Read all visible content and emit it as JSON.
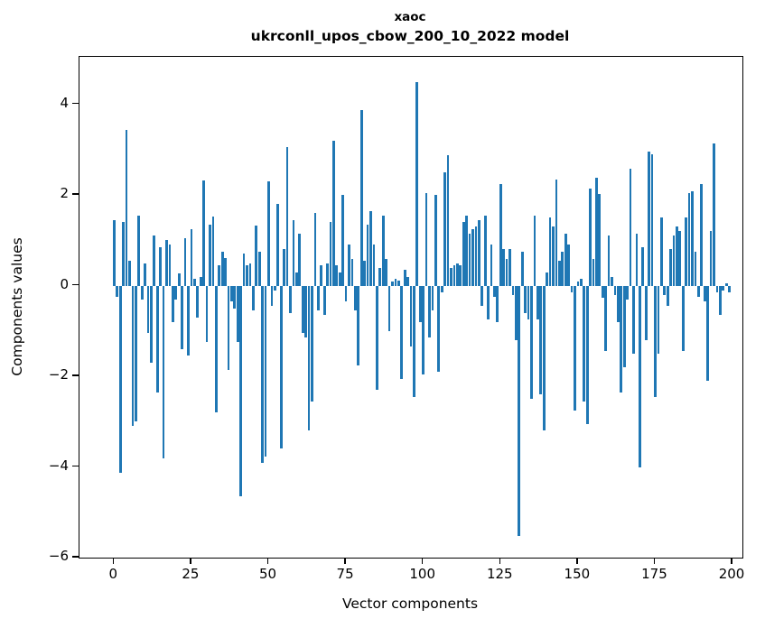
{
  "title": {
    "line1": "xaoc",
    "line2": "ukrconll_upos_cbow_200_10_2022 model"
  },
  "chart_data": {
    "type": "bar",
    "title": "xaoc\nukrconll_upos_cbow_200_10_2022 model",
    "xlabel": "Vector components",
    "ylabel": "Components values",
    "bar_color": "#1f77b4",
    "x_ticks": [
      0,
      25,
      50,
      75,
      100,
      125,
      150,
      175,
      200
    ],
    "y_ticks": [
      -6,
      -4,
      -2,
      0,
      2,
      4
    ],
    "xlim": [
      -11.2,
      203.2
    ],
    "ylim": [
      -6,
      5.05
    ],
    "grid": false,
    "legend": "none",
    "x_start": 0,
    "values": [
      1.45,
      -0.25,
      -4.13,
      1.4,
      3.44,
      0.55,
      -3.1,
      -3.0,
      1.55,
      -0.3,
      0.5,
      -1.05,
      -1.7,
      1.1,
      -2.35,
      0.85,
      -3.8,
      1.0,
      0.9,
      -0.8,
      -0.3,
      0.28,
      -1.4,
      1.05,
      -1.55,
      1.25,
      0.15,
      -0.7,
      0.2,
      2.32,
      -1.25,
      1.35,
      1.52,
      -2.8,
      0.45,
      0.75,
      0.62,
      -1.85,
      -0.35,
      -0.5,
      -1.25,
      -4.65,
      0.7,
      0.45,
      0.5,
      -0.55,
      1.32,
      0.74,
      -3.9,
      -3.78,
      2.3,
      -0.45,
      -0.1,
      1.8,
      -3.6,
      0.8,
      3.05,
      -0.6,
      1.45,
      0.3,
      1.15,
      -1.05,
      -1.15,
      -3.2,
      -2.55,
      1.6,
      -0.55,
      0.45,
      -0.65,
      0.5,
      1.4,
      3.2,
      0.45,
      0.3,
      2.0,
      -0.35,
      0.9,
      0.6,
      -0.55,
      -1.75,
      3.87,
      0.55,
      1.35,
      1.65,
      0.9,
      -2.3,
      0.4,
      1.55,
      0.6,
      -1.0,
      0.1,
      0.15,
      0.12,
      -2.05,
      0.35,
      0.2,
      -1.35,
      -2.45,
      4.5,
      -0.8,
      -1.95,
      2.05,
      -1.15,
      -0.55,
      2.0,
      -1.9,
      -0.15,
      2.5,
      2.88,
      0.4,
      0.45,
      0.5,
      0.45,
      1.4,
      1.55,
      1.15,
      1.25,
      1.3,
      1.45,
      -0.45,
      1.55,
      -0.75,
      0.9,
      -0.25,
      -0.8,
      2.25,
      0.8,
      0.6,
      0.8,
      -0.2,
      -1.2,
      -5.53,
      0.75,
      -0.6,
      -0.75,
      -2.5,
      1.55,
      -0.75,
      -2.4,
      -3.2,
      0.3,
      1.5,
      1.3,
      2.35,
      0.55,
      0.75,
      1.15,
      0.9,
      -0.15,
      -2.76,
      0.1,
      0.15,
      -2.55,
      -3.05,
      2.15,
      0.6,
      2.38,
      2.02,
      -0.27,
      -1.45,
      1.1,
      0.2,
      -0.2,
      -0.8,
      -2.35,
      -1.8,
      -0.3,
      2.58,
      -1.5,
      1.15,
      -4.0,
      0.85,
      -1.2,
      2.95,
      2.9,
      -2.45,
      -1.5,
      1.5,
      -0.2,
      -0.45,
      0.8,
      1.1,
      1.3,
      1.2,
      -1.45,
      1.5,
      2.05,
      2.08,
      0.75,
      -0.25,
      2.25,
      -0.35,
      -2.1,
      1.2,
      3.14,
      -0.15,
      -0.65,
      -0.1,
      0.05,
      -0.15
    ]
  }
}
